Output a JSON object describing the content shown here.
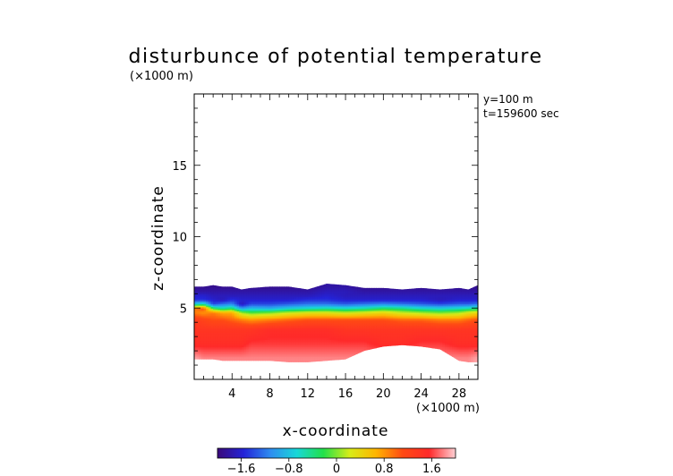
{
  "chart_data": {
    "type": "heatmap",
    "title": "disturbunce of potential temperature",
    "xlabel": "x-coordinate",
    "ylabel": "z-coordinate",
    "x_unit": "(×1000 m)",
    "y_unit": "(×1000 m)",
    "annotations": [
      "y=100 m",
      "t=159600 sec"
    ],
    "xlim": [
      0,
      30
    ],
    "ylim": [
      0,
      20
    ],
    "x_ticks": [
      4,
      8,
      12,
      16,
      20,
      24,
      28
    ],
    "y_ticks": [
      5,
      10,
      15
    ],
    "colorbar": {
      "min": -2.0,
      "max": 2.0,
      "ticks": [
        "−1.6",
        "−0.8",
        "0",
        "0.8",
        "1.6"
      ],
      "tick_values": [
        -1.6,
        -0.8,
        0,
        0.8,
        1.6
      ],
      "colormap": [
        "#3a0a7a",
        "#2424d8",
        "#2e8cf0",
        "#18d8d8",
        "#22e04a",
        "#d8ec18",
        "#ffb400",
        "#ff4a14",
        "#ff2a2a",
        "#ffd0d4"
      ]
    },
    "field": {
      "x": [
        0,
        1,
        2,
        3,
        4,
        5,
        6,
        8,
        10,
        12,
        14,
        16,
        18,
        20,
        22,
        24,
        26,
        28,
        29,
        30
      ],
      "ground_z": [
        1.4,
        1.4,
        1.4,
        1.3,
        1.3,
        1.3,
        1.3,
        1.3,
        1.2,
        1.2,
        1.3,
        1.4,
        2.0,
        2.3,
        2.4,
        2.3,
        2.1,
        1.3,
        1.2,
        1.2
      ],
      "top_z": [
        6.5,
        6.5,
        6.6,
        6.5,
        6.5,
        6.3,
        6.4,
        6.5,
        6.5,
        6.3,
        6.7,
        6.6,
        6.4,
        6.4,
        6.3,
        6.4,
        6.3,
        6.4,
        6.3,
        6.6
      ],
      "z": [
        1.5,
        2.5,
        3.5,
        4.2,
        4.7,
        5.0,
        5.3,
        5.6,
        5.9,
        6.2,
        6.5
      ],
      "theta": [
        [
          1.9,
          1.8,
          1.8,
          1.8,
          1.8,
          1.8,
          1.8,
          1.8,
          1.8,
          1.8,
          1.8,
          1.8,
          1.8,
          1.8,
          1.8,
          1.8,
          1.8,
          1.8,
          1.8,
          1.9
        ],
        [
          1.5,
          1.5,
          1.5,
          1.5,
          1.5,
          1.5,
          1.6,
          1.6,
          1.6,
          1.6,
          1.6,
          1.6,
          1.6,
          1.5,
          1.5,
          1.6,
          1.6,
          1.5,
          1.5,
          1.5
        ],
        [
          1.4,
          1.4,
          1.4,
          1.4,
          1.4,
          1.4,
          1.4,
          1.5,
          1.5,
          1.5,
          1.5,
          1.4,
          1.4,
          1.4,
          1.4,
          1.4,
          1.4,
          1.4,
          1.4,
          1.4
        ],
        [
          1.3,
          1.2,
          1.1,
          1.1,
          1.0,
          0.9,
          0.8,
          0.9,
          1.0,
          1.1,
          1.1,
          1.1,
          1.1,
          1.1,
          1.0,
          1.0,
          0.9,
          0.9,
          1.0,
          1.1
        ],
        [
          0.9,
          0.8,
          0.9,
          0.7,
          0.7,
          0.1,
          -0.1,
          0.0,
          0.2,
          0.3,
          0.3,
          0.2,
          0.3,
          0.4,
          0.2,
          0.1,
          0.0,
          0.1,
          0.3,
          0.4
        ],
        [
          0.9,
          1.1,
          -0.2,
          -0.5,
          -0.3,
          -1.0,
          -0.8,
          -0.9,
          -0.7,
          -0.6,
          -0.5,
          -0.6,
          -0.5,
          -0.3,
          -0.4,
          -0.6,
          -0.7,
          -0.6,
          -0.5,
          -0.4
        ],
        [
          -0.7,
          -0.5,
          -1.4,
          -1.2,
          -1.1,
          -1.7,
          -1.4,
          -1.4,
          -1.3,
          -1.2,
          -1.2,
          -1.3,
          -1.2,
          -1.1,
          -1.2,
          -1.3,
          -1.4,
          -1.3,
          -1.3,
          -1.2
        ],
        [
          -1.5,
          -1.5,
          -1.6,
          -1.7,
          -1.5,
          -1.6,
          -1.6,
          -1.6,
          -1.6,
          -1.5,
          -1.5,
          -1.6,
          -1.6,
          -1.6,
          -1.6,
          -1.6,
          -1.7,
          -1.6,
          -1.6,
          -1.6
        ],
        [
          -1.6,
          -1.6,
          -1.7,
          -1.7,
          -1.7,
          -1.7,
          -1.7,
          -1.7,
          -1.7,
          -1.7,
          -1.6,
          -1.7,
          -1.7,
          -1.7,
          -1.7,
          -1.7,
          -1.7,
          -1.7,
          -1.7,
          -1.7
        ],
        [
          -1.8,
          -1.8,
          -1.8,
          -1.8,
          -1.8,
          -1.8,
          -1.8,
          -1.8,
          -1.8,
          -1.8,
          -1.7,
          -1.7,
          -1.8,
          -1.8,
          -1.8,
          -1.8,
          -1.8,
          -1.8,
          -1.8,
          -1.8
        ],
        [
          -1.9,
          -1.9,
          -1.9,
          -1.9,
          -1.9,
          -1.9,
          -1.9,
          -1.9,
          -1.9,
          -1.9,
          -1.8,
          -1.8,
          -1.9,
          -1.9,
          -1.9,
          -1.9,
          -1.9,
          -1.9,
          -1.9,
          -1.9
        ]
      ]
    }
  }
}
